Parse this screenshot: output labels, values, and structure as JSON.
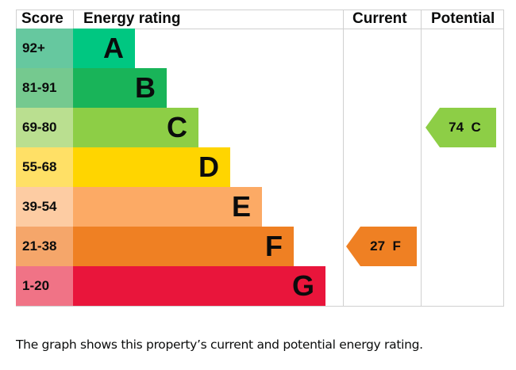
{
  "chart_data": {
    "type": "bar",
    "headers": {
      "score": "Score",
      "rating": "Energy rating",
      "current": "Current",
      "potential": "Potential"
    },
    "bands": [
      {
        "score": "92+",
        "letter": "A",
        "color": "#00c781",
        "score_color": "#66c89f"
      },
      {
        "score": "81-91",
        "letter": "B",
        "color": "#19b459",
        "score_color": "#75c98f"
      },
      {
        "score": "69-80",
        "letter": "C",
        "color": "#8dce46",
        "score_color": "#badf90"
      },
      {
        "score": "55-68",
        "letter": "D",
        "color": "#ffd500",
        "score_color": "#ffe066"
      },
      {
        "score": "39-54",
        "letter": "E",
        "color": "#fcaa65",
        "score_color": "#fdcca3"
      },
      {
        "score": "21-38",
        "letter": "F",
        "color": "#ef8023",
        "score_color": "#f5a66a"
      },
      {
        "score": "1-20",
        "letter": "G",
        "color": "#e9153b",
        "score_color": "#f07386"
      }
    ],
    "current": {
      "value": 27,
      "band": "F",
      "label": "27  F",
      "color": "#ef8023"
    },
    "potential": {
      "value": 74,
      "band": "C",
      "label": "74  C",
      "color": "#8dce46"
    }
  },
  "caption": "The graph shows this property’s current and potential energy rating."
}
